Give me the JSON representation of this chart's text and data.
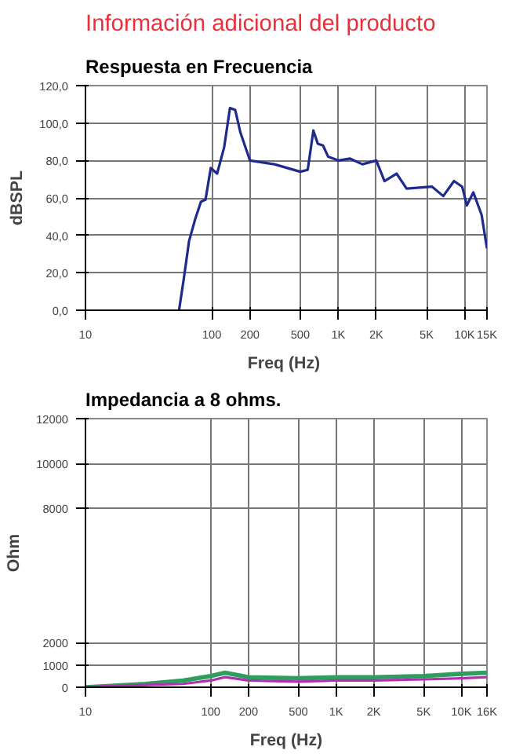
{
  "chart_data": [
    {
      "type": "line",
      "title": "Información adicional del producto",
      "subtitle": "Respuesta en Frecuencia",
      "xlabel": "Freq  (Hz)",
      "ylabel": "dBSPL",
      "log": "x",
      "grid": true,
      "marker": "none",
      "line_style": "solid",
      "xlim": [
        10,
        15000
      ],
      "xticks": [
        {
          "value": 10,
          "label": "10"
        },
        {
          "value": 100,
          "label": "100"
        },
        {
          "value": 200,
          "label": "200"
        },
        {
          "value": 500,
          "label": "500"
        },
        {
          "value": 1000,
          "label": "1K"
        },
        {
          "value": 2000,
          "label": "2K"
        },
        {
          "value": 5000,
          "label": "5K"
        },
        {
          "value": 10000,
          "label": "10K"
        },
        {
          "value": 15000,
          "label": "15K"
        }
      ],
      "ylim": [
        0,
        120
      ],
      "yticks": [
        {
          "value": 0,
          "label": "0,0"
        },
        {
          "value": 20,
          "label": "20,0"
        },
        {
          "value": 40,
          "label": "40,0"
        },
        {
          "value": 60,
          "label": "60,0"
        },
        {
          "value": 80,
          "label": "80,0"
        },
        {
          "value": 100,
          "label": "100,0"
        },
        {
          "value": 120,
          "label": "120,0"
        }
      ],
      "x": [
        55,
        60,
        66,
        74,
        82,
        89,
        98,
        110,
        125,
        139,
        153,
        168,
        200,
        312,
        500,
        573,
        635,
        688,
        757,
        832,
        1000,
        1240,
        1550,
        2000,
        2320,
        2890,
        3470,
        5520,
        6770,
        8230,
        9550,
        10400,
        11700,
        13600,
        15000
      ],
      "series": [
        {
          "color": "#1f2a8f",
          "values": [
            0,
            17,
            37,
            49,
            58,
            59,
            76,
            73,
            87,
            108,
            107,
            95,
            80,
            78,
            74,
            75,
            96,
            89,
            88,
            82,
            80,
            81,
            78,
            80,
            69,
            73,
            65,
            66,
            61,
            69,
            66,
            56,
            63,
            51,
            33
          ]
        }
      ]
    },
    {
      "type": "line",
      "title": "Impedancia a 8 ohms.",
      "xlabel": "Freq (Hz)",
      "ylabel": "Ohm",
      "log": "x",
      "grid": true,
      "marker": "none",
      "line_style": "solid",
      "xlim": [
        10,
        16000
      ],
      "xticks": [
        {
          "value": 10,
          "label": "10"
        },
        {
          "value": 100,
          "label": "100"
        },
        {
          "value": 200,
          "label": "200"
        },
        {
          "value": 500,
          "label": "500"
        },
        {
          "value": 1000,
          "label": "1K"
        },
        {
          "value": 2000,
          "label": "2K"
        },
        {
          "value": 5000,
          "label": "5K"
        },
        {
          "value": 10000,
          "label": "10K"
        },
        {
          "value": 16000,
          "label": "16K"
        }
      ],
      "ylim": [
        0,
        12000
      ],
      "yticks": [
        0,
        1000,
        2000,
        8000,
        10000,
        12000
      ],
      "x": [
        10,
        15,
        30,
        60,
        100,
        130,
        200,
        500,
        1000,
        2000,
        5000,
        10000,
        16000
      ],
      "series": [
        {
          "color": "#2e9e5e",
          "values": [
            0,
            50,
            150,
            300,
            500,
            650,
            450,
            400,
            450,
            450,
            500,
            600,
            650
          ]
        },
        {
          "color": "#b030b0",
          "values": [
            0,
            50,
            100,
            150,
            300,
            450,
            300,
            250,
            300,
            300,
            350,
            400,
            450
          ]
        }
      ]
    }
  ]
}
